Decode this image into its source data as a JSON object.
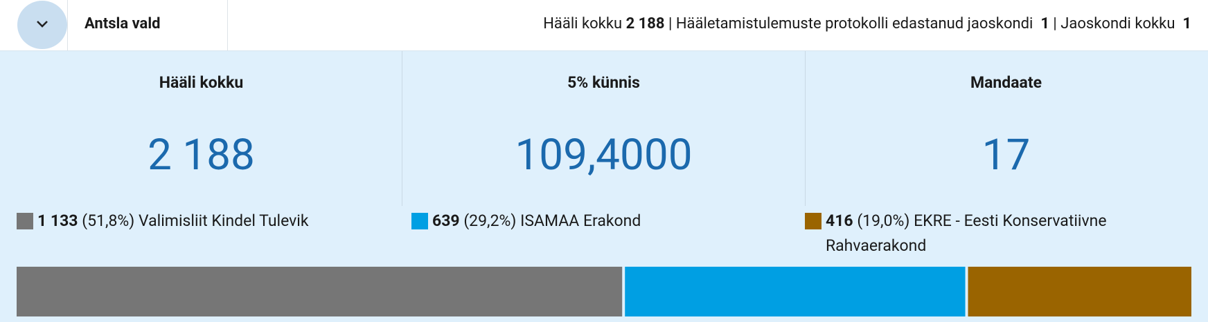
{
  "header": {
    "title": "Antsla vald",
    "votes_label": "Hääli kokku",
    "votes": "2 188",
    "stations_reported_label": "| Hääletamistulemuste protokolli edastanud jaoskondi",
    "stations_reported": "1",
    "stations_total_label": "| Jaoskondi kokku",
    "stations_total": "1"
  },
  "stats": [
    {
      "label": "Hääli kokku",
      "value": "2 188"
    },
    {
      "label": "5% künnis",
      "value": "109,4000"
    },
    {
      "label": "Mandaate",
      "value": "17"
    }
  ],
  "chart_data": {
    "type": "stacked-bar",
    "categories": [
      "Valimisliit Kindel Tulevik",
      "ISAMAA Erakond",
      "EKRE - Eesti Konservatiivne Rahvaerakond"
    ],
    "values": [
      1133,
      639,
      416
    ],
    "value_labels": [
      "1 133",
      "639",
      "416"
    ],
    "shares": [
      51.8,
      29.2,
      19.0
    ],
    "share_labels": [
      "(51,8%)",
      "(29,2%)",
      "(19,0%)"
    ],
    "colors": [
      "#767676",
      "#009fe3",
      "#9a6400"
    ]
  }
}
